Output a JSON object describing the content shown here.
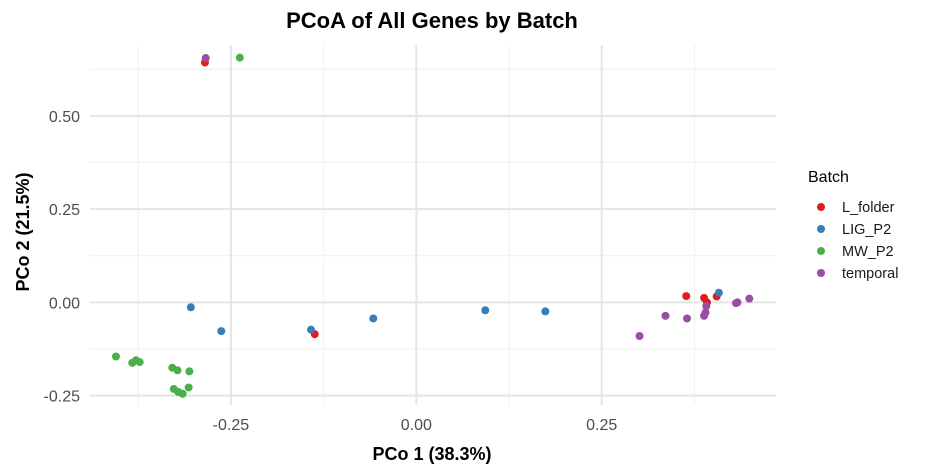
{
  "chart_data": {
    "type": "scatter",
    "title": "PCoA of All Genes by Batch",
    "xlabel": "PCo 1 (38.3%)",
    "ylabel": "PCo 2 (21.5%)",
    "xlim": [
      -0.44,
      0.485
    ],
    "ylim": [
      -0.275,
      0.69
    ],
    "x_ticks": [
      -0.25,
      0.0,
      0.25
    ],
    "x_tick_labels": [
      "-0.25",
      "0.00",
      "0.25"
    ],
    "y_ticks": [
      -0.25,
      0.0,
      0.25,
      0.5
    ],
    "y_tick_labels": [
      "-0.25",
      "0.00",
      "0.25",
      "0.50"
    ],
    "grid": true,
    "legend_title": "Batch",
    "legend_position": "right",
    "series": [
      {
        "name": "L_folder",
        "color": "#e41a1c",
        "points": [
          [
            -0.285,
            0.643
          ],
          [
            -0.137,
            -0.085
          ],
          [
            0.364,
            0.017
          ],
          [
            0.388,
            0.012
          ],
          [
            0.392,
            0.0
          ],
          [
            0.405,
            0.016
          ]
        ]
      },
      {
        "name": "LIG_P2",
        "color": "#377eb8",
        "points": [
          [
            -0.304,
            -0.013
          ],
          [
            -0.263,
            -0.077
          ],
          [
            -0.142,
            -0.073
          ],
          [
            -0.058,
            -0.043
          ],
          [
            0.093,
            -0.021
          ],
          [
            0.174,
            -0.024
          ],
          [
            0.408,
            0.026
          ]
        ]
      },
      {
        "name": "MW_P2",
        "color": "#4daf4a",
        "points": [
          [
            -0.238,
            0.656
          ],
          [
            -0.405,
            -0.145
          ],
          [
            -0.383,
            -0.162
          ],
          [
            -0.378,
            -0.155
          ],
          [
            -0.373,
            -0.16
          ],
          [
            -0.329,
            -0.175
          ],
          [
            -0.322,
            -0.182
          ],
          [
            -0.306,
            -0.185
          ],
          [
            -0.327,
            -0.232
          ],
          [
            -0.321,
            -0.24
          ],
          [
            -0.315,
            -0.245
          ],
          [
            -0.307,
            -0.228
          ]
        ]
      },
      {
        "name": "temporal",
        "color": "#984ea3",
        "points": [
          [
            -0.284,
            0.655
          ],
          [
            0.301,
            -0.09
          ],
          [
            0.336,
            -0.036
          ],
          [
            0.365,
            -0.043
          ],
          [
            0.388,
            -0.036
          ],
          [
            0.39,
            -0.027
          ],
          [
            0.391,
            -0.01
          ],
          [
            0.431,
            -0.002
          ],
          [
            0.433,
            0.0
          ],
          [
            0.449,
            0.01
          ]
        ]
      }
    ]
  }
}
